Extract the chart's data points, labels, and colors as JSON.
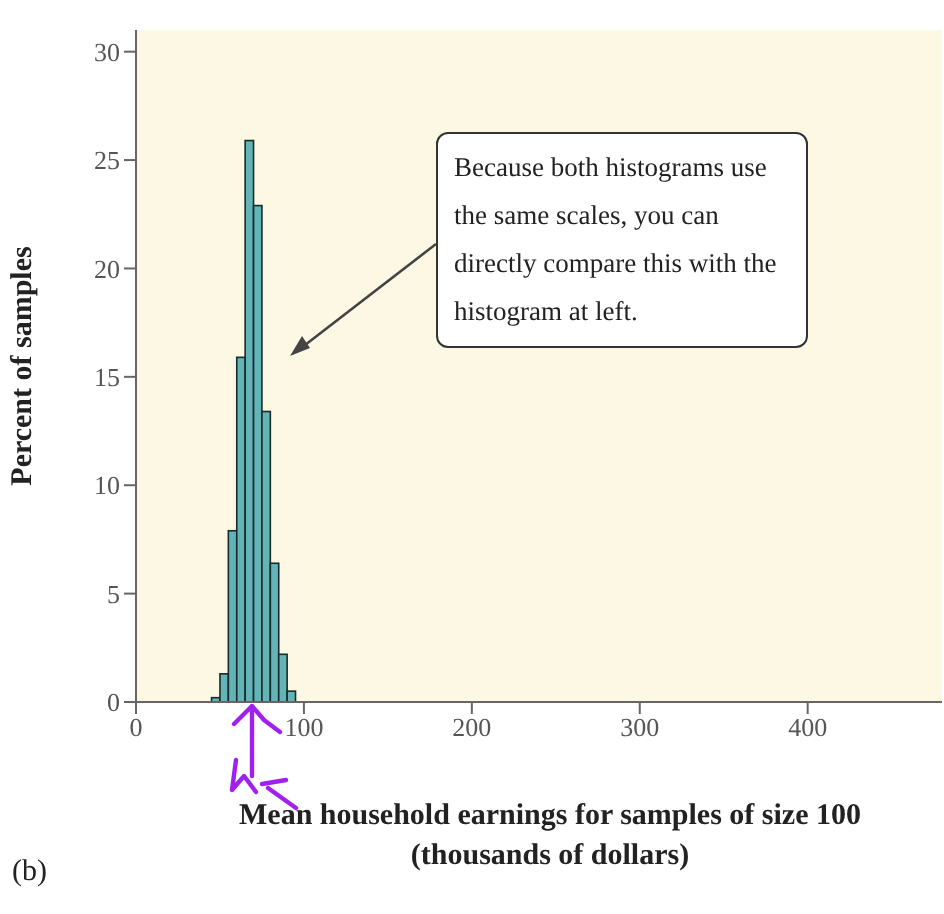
{
  "chart_data": {
    "type": "histogram",
    "xlabel": "Mean household earnings for samples of size 100 (thousands of dollars)",
    "ylabel": "Percent of samples",
    "bins": [
      45,
      50,
      55,
      60,
      65,
      70,
      75,
      80,
      85,
      90,
      95
    ],
    "values": [
      0.2,
      1.3,
      7.9,
      15.9,
      25.9,
      22.9,
      13.4,
      6.4,
      2.2,
      0.5
    ],
    "color": "#62b4b6",
    "xlim": [
      0,
      480
    ],
    "xticks": [
      0,
      100,
      200,
      300,
      400
    ],
    "ylim": [
      0,
      31
    ],
    "yticks": [
      0,
      5,
      10,
      15,
      20,
      25,
      30
    ],
    "annotations": [
      "Because both histograms use the same scales, you can directly compare this with the histogram at left.",
      "(b)"
    ]
  }
}
